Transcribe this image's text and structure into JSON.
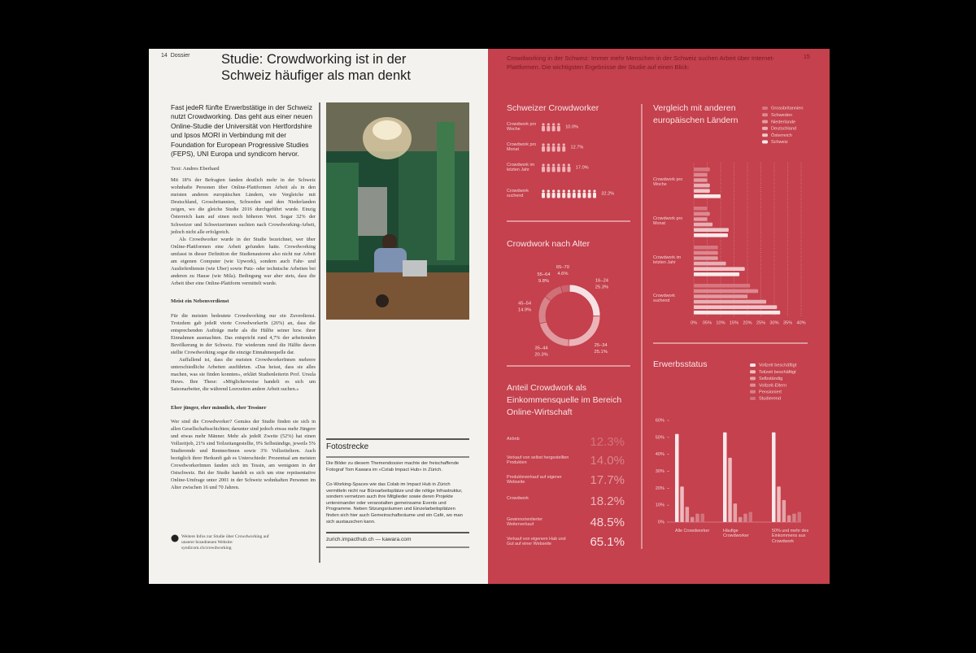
{
  "left_page": {
    "page_number": "14",
    "section": "Dossier",
    "title": "Studie: Crowdworking ist in der Schweiz häufiger als man denkt",
    "lead": "Fast jedeR fünfte Erwerbstätige in der Schweiz nutzt Crowdworking. Das geht aus einer neuen Online-Studie der Universität von Hertfordshire und Ipsos MORI in Verbindung mit der Foundation for European Progressive Studies (FEPS), UNI Europa und syndicom hervor.",
    "author": "Text: Andres Eberhard",
    "paragraphs": [
      "Mit 18% der Befragten fanden deutlich mehr in der Schweiz wohnhafte Personen über Online-Plattformen Arbeit als in den meisten anderen europäischen Ländern, wie Vergleiche mit Deutschland, Grossbritannien, Schweden und den Niederlanden zeigen, wo die gleiche Studie 2016 durchgeführt wurde. Einzig Österreich kam auf einen noch höheren Wert. Sogar 32% der Schweizer und Schweizerinnen suchten nach Crowdworking-Arbeit, jedoch nicht alle erfolgreich.",
      "Als Crowdworker wurde in der Studie bezeichnet, wer über Online-Plattformen eine Arbeit gefunden hatte. Crowdworking umfasst in dieser Definition der Studienautoren also nicht nur Arbeit am eigenen Computer (wie Upwork), sondern auch Fahr- und Auslieferdienste (wie Uber) sowie Putz- oder technische Arbeiten bei anderen zu Hause (wie Mila). Bedingung war aber stets, dass die Arbeit über eine Online-Plattform vermittelt wurde."
    ],
    "subheading_1": "Meist ein Nebenverdienst",
    "paragraphs_2": [
      "Für die meisten bedeutete Crowdworking nur ein Zuverdienst. Trotzdem gab jedeR vierte CrowdworkerIn (26%) an, dass die entsprechenden Aufträge mehr als die Hälfte seiner bzw. ihrer Einnahmen ausmachten. Das entspricht rund 4,7% der arbeitenden Bevölkerung in der Schweiz. Für wiederum rund die Hälfte davon stellte Crowdworking sogar die einzige Einnahmequelle dar.",
      "Auffallend ist, dass die meisten CrowdworkerInnen mehrere unterschiedliche Arbeiten ausführten. «Das heisst, dass sie alles machen, was sie finden konnten», erklärt Studienleiterin Prof. Ursula Huws. Ihre These: «Möglicherweise handelt es sich um Saisonarbeiter, die während Leerzeiten andere Arbeit suchen.»"
    ],
    "subheading_2": "Eher jünger, eher männlich, eher Tessiner",
    "paragraphs_3": [
      "Wer sind die Crowdworker? Gemäss der Studie finden sie sich in allen Gesellschaftsschichten; darunter sind jedoch etwas mehr Jüngere und etwas mehr Männer. Mehr als jedeR Zweite (52%) hat einen Vollzeitjob, 21% sind Teilzeitangestellte, 9% Selbständige, jeweils 5% Studierende und RentnerInnen sowie 3% Vollzeiteltern. Auch bezüglich ihrer Herkunft gab es Unterschiede: Prozentual am meisten CrowdworkerInnen fanden sich im Tessin, am wenigsten in der Ostschweiz. Bei der Studie handelt es sich um eine repräsentative Online-Umfrage unter 2001 in der Schweiz wohnhaften Personen im Alter zwischen 16 und 70 Jahren."
    ],
    "footnote": "Weitere Infos zur Studie über Crowdworking auf unserer brandneuen Website: syndicom.ch/crowdworking",
    "photo_box": {
      "title": "Fotostrecke",
      "intro": "Die Bilder zu diesem Themendossier machte der freischaffende Fotograf Tom Kawara im «Colab Impact Hub» in Zürich.",
      "text": "Co-Working-Spaces wie das Colab im Impact Hub in Zürich vermitteln nicht nur Büroarbeitsplätze und die nötige Infrastruktur, sondern vernetzen auch ihre Mitglieder sowie deren Projekte untereinander oder veranstalten gemeinsame Events und Programme. Neben Sitzungsräumen und Einzelarbeitsplätzen finden sich hier auch Gemeinschaftsräume und ein Café, wo man sich austauschen kann.",
      "links": "zurich.impacthub.ch — kawara.com"
    }
  },
  "right_page": {
    "page_number": "15",
    "intro": "Crowdworking in der Schweiz: Immer mehr Menschen in der Schweiz suchen Arbeit über Internet-Plattformen. Die wichtigsten Ergebnisse der Studie auf einen Blick:",
    "swiss_crowdworkers": {
      "title": "Schweizer Crowdworker",
      "rows": [
        {
          "label": "Crowdwork pro Woche",
          "value": 10.0,
          "value_label": "10.0%"
        },
        {
          "label": "Crowdwork pro Monat",
          "value": 12.7,
          "value_label": "12.7%"
        },
        {
          "label": "Crowdwork im letzten Jahr",
          "value": 17.0,
          "value_label": "17.0%"
        },
        {
          "label": "Crowdwork suchend",
          "value": 32.2,
          "value_label": "32.2%"
        }
      ]
    },
    "age": {
      "type": "donut",
      "title": "Crowdwork nach Alter",
      "categories": [
        "16–24",
        "25–34",
        "35–44",
        "45–54",
        "55–64",
        "65–70"
      ],
      "values": [
        25.3,
        25.1,
        20.3,
        14.9,
        9.8,
        4.6
      ],
      "value_labels": [
        "25.3%",
        "25.1%",
        "20.3%",
        "14.9%",
        "9.8%",
        "4.6%"
      ],
      "colors": [
        "#f6e2e4",
        "#ebb4b8",
        "#e09aa0",
        "#d7838a",
        "#cf6f78",
        "#ca636d"
      ]
    },
    "income_share": {
      "title": "Anteil Crowdwork als Einkommensquelle im Bereich Online-Wirtschaft",
      "rows": [
        {
          "label": "Airbnb",
          "value": "12.3%"
        },
        {
          "label": "Verkauf von selbst hergestellten Produkten",
          "value": "14.0%"
        },
        {
          "label": "Produkteverkauf auf eigener Webseite",
          "value": "17.7%"
        },
        {
          "label": "Crowdwork",
          "value": "18.2%"
        },
        {
          "label": "Gewinnorientierter Weiterverkauf",
          "value": "48.5%"
        },
        {
          "label": "Verkauf von eigenem Hab und Gut auf einer Webseite",
          "value": "65.1%"
        }
      ]
    },
    "europe": {
      "type": "bar",
      "title": "Vergleich mit anderen europäischen Ländern",
      "categories": [
        "Crowdwork pro Woche",
        "Crowdwork pro Monat",
        "Crowdwork im letzten Jahr",
        "Crowdwork suchend"
      ],
      "series": [
        {
          "name": "Grossbritannien",
          "color": "#d8767f",
          "values": [
            6,
            5,
            9,
            21
          ]
        },
        {
          "name": "Schweden",
          "color": "#dd8890",
          "values": [
            5,
            6,
            9,
            24
          ]
        },
        {
          "name": "Niederlande",
          "color": "#e29ba1",
          "values": [
            5,
            5,
            9,
            20
          ]
        },
        {
          "name": "Deutschland",
          "color": "#e8afb4",
          "values": [
            6,
            7,
            12,
            27
          ]
        },
        {
          "name": "Österreich",
          "color": "#efc5c9",
          "values": [
            6,
            13,
            19,
            31
          ]
        },
        {
          "name": "Schweiz",
          "color": "#f8e9ea",
          "values": [
            10,
            12.7,
            17,
            32.2
          ]
        }
      ],
      "xlim": [
        0,
        40
      ],
      "xticks": [
        {
          "value": 0,
          "label": "0%"
        },
        {
          "value": 5,
          "label": "05%"
        },
        {
          "value": 10,
          "label": "10%"
        },
        {
          "value": 15,
          "label": "15%"
        },
        {
          "value": 20,
          "label": "20%"
        },
        {
          "value": 25,
          "label": "25%"
        },
        {
          "value": 30,
          "label": "30%"
        },
        {
          "value": 35,
          "label": "35%"
        },
        {
          "value": 40,
          "label": "40%"
        }
      ]
    },
    "employment": {
      "type": "bar",
      "title": "Erwerbsstatus",
      "categories": [
        "Alle Crowdworker",
        "Häufige Crowdworker",
        "50% und mehr des Einkommens aus Crowdwork"
      ],
      "series": [
        {
          "name": "Vollzeit beschäftigt",
          "color": "#f8e9ea",
          "values": [
            52,
            53,
            53
          ]
        },
        {
          "name": "Teilzeit beschäftigt",
          "color": "#eebbbf",
          "values": [
            21,
            38,
            21
          ]
        },
        {
          "name": "Selbständig",
          "color": "#e5a3a8",
          "values": [
            9,
            11,
            13
          ]
        },
        {
          "name": "Vollzeit-Eltern",
          "color": "#dd8e95",
          "values": [
            3,
            3,
            4
          ]
        },
        {
          "name": "Pensioniert",
          "color": "#d77f87",
          "values": [
            5,
            5,
            5
          ]
        },
        {
          "name": "Studierend",
          "color": "#d0727b",
          "values": [
            5,
            6,
            6
          ]
        }
      ],
      "ylim": [
        0,
        60
      ],
      "yticks": [
        {
          "value": 0,
          "label": "0%"
        },
        {
          "value": 10,
          "label": "10%"
        },
        {
          "value": 20,
          "label": "20%"
        },
        {
          "value": 30,
          "label": "30%"
        },
        {
          "value": 40,
          "label": "40%"
        },
        {
          "value": 50,
          "label": "50%"
        },
        {
          "value": 60,
          "label": "60%"
        }
      ]
    }
  }
}
